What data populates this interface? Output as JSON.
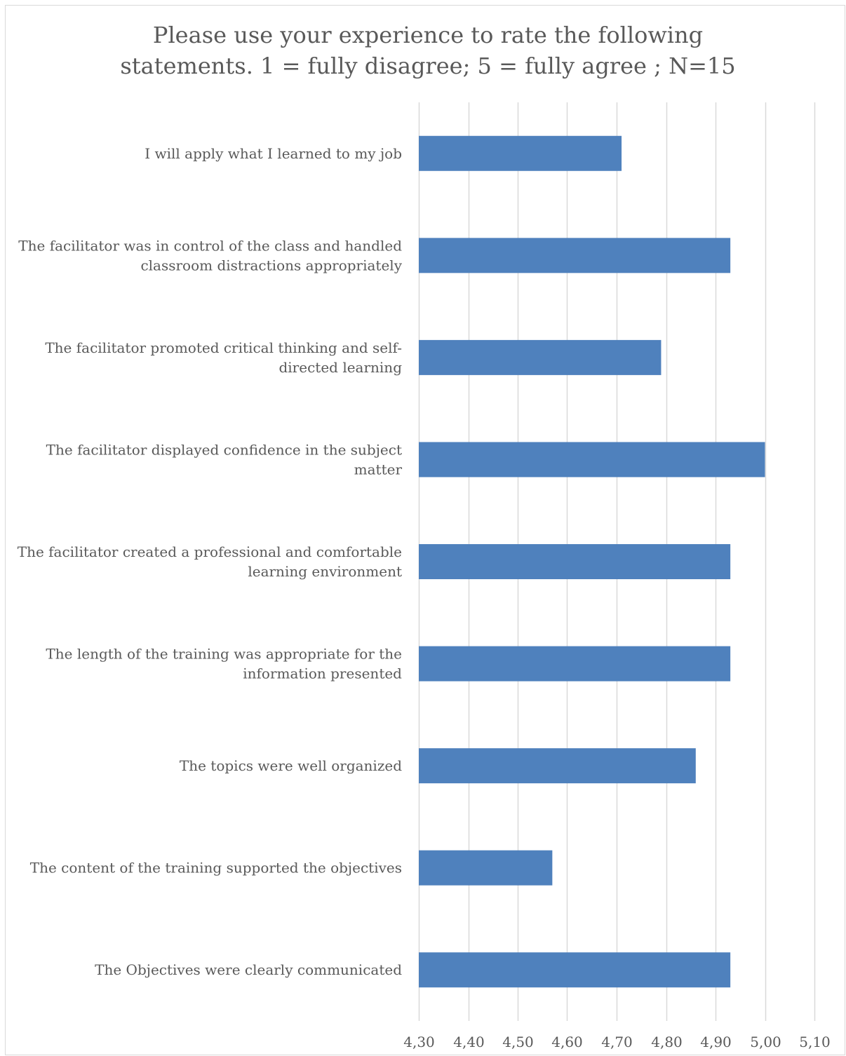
{
  "chart_data": {
    "type": "bar",
    "orientation": "horizontal",
    "title": "Please use your experience to rate the following\nstatements. 1 = fully disagree; 5 = fully agree ; N=15",
    "xlabel": "",
    "ylabel": "",
    "xlim": [
      4.3,
      5.1
    ],
    "ticks": [
      "4,30",
      "4,40",
      "4,50",
      "4,60",
      "4,70",
      "4,80",
      "4,90",
      "5,00",
      "5,10"
    ],
    "tick_values": [
      4.3,
      4.4,
      4.5,
      4.6,
      4.7,
      4.8,
      4.9,
      5.0,
      5.1
    ],
    "grid": true,
    "bar_color": "#4f81bd",
    "grid_color": "#d9d9d9",
    "categories": [
      [
        "I will apply what I learned to my job"
      ],
      [
        "The facilitator was in control of the class and handled",
        "classroom distractions appropriately"
      ],
      [
        "The facilitator promoted critical thinking and self-",
        "directed learning"
      ],
      [
        "The facilitator displayed confidence in the subject",
        "matter"
      ],
      [
        "The facilitator created a professional and comfortable",
        "learning environment"
      ],
      [
        "The length of the training was appropriate for the",
        "information presented"
      ],
      [
        "The topics were well organized"
      ],
      [
        "The content of the training supported the objectives"
      ],
      [
        "The Objectives were clearly communicated"
      ]
    ],
    "values": [
      4.71,
      4.93,
      4.79,
      5.0,
      4.93,
      4.93,
      4.86,
      4.57,
      4.93
    ]
  }
}
